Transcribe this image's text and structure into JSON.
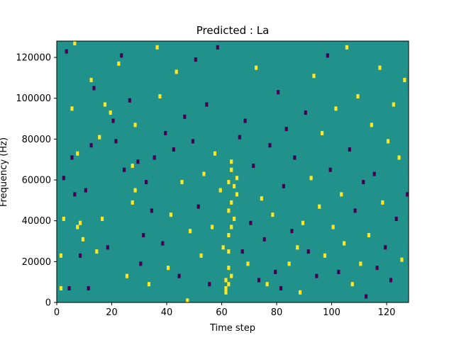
{
  "chart_data": {
    "type": "heatmap",
    "title": "Predicted : La",
    "xlabel": "Time step",
    "ylabel": "Frequency (Hz)",
    "xlim": [
      0,
      128
    ],
    "ylim": [
      0,
      128000
    ],
    "x_ticks": [
      0,
      20,
      40,
      60,
      80,
      100,
      120
    ],
    "y_ticks": [
      0,
      20000,
      40000,
      60000,
      80000,
      100000,
      120000
    ],
    "n_time_steps": 128,
    "n_freq_bins": 64,
    "grid": false,
    "colormap": "viridis",
    "colors": {
      "background": "#21918c",
      "high": "#fde725",
      "low": "#440154"
    },
    "cell_value_legend": {
      "high": 1,
      "low": -1,
      "background": 0
    },
    "cells": [
      {
        "t": 1,
        "f": 3,
        "v": 1
      },
      {
        "t": 1,
        "f": 11,
        "v": 1
      },
      {
        "t": 2,
        "f": 20,
        "v": 1
      },
      {
        "t": 2,
        "f": 30,
        "v": -1
      },
      {
        "t": 3,
        "f": 61,
        "v": -1
      },
      {
        "t": 4,
        "f": 3,
        "v": -1
      },
      {
        "t": 5,
        "f": 35,
        "v": -1
      },
      {
        "t": 5,
        "f": 47,
        "v": 1
      },
      {
        "t": 6,
        "f": 63,
        "v": 1
      },
      {
        "t": 6,
        "f": 26,
        "v": -1
      },
      {
        "t": 7,
        "f": 18,
        "v": 1
      },
      {
        "t": 7,
        "f": 36,
        "v": 1
      },
      {
        "t": 8,
        "f": 11,
        "v": -1
      },
      {
        "t": 8,
        "f": 19,
        "v": 1
      },
      {
        "t": 9,
        "f": 15,
        "v": 1
      },
      {
        "t": 10,
        "f": 27,
        "v": -1
      },
      {
        "t": 11,
        "f": 3,
        "v": -1
      },
      {
        "t": 12,
        "f": 38,
        "v": -1
      },
      {
        "t": 12,
        "f": 54,
        "v": 1
      },
      {
        "t": 13,
        "f": 52,
        "v": -1
      },
      {
        "t": 14,
        "f": 12,
        "v": 1
      },
      {
        "t": 15,
        "f": 40,
        "v": 1
      },
      {
        "t": 16,
        "f": 20,
        "v": 1
      },
      {
        "t": 17,
        "f": 48,
        "v": 1
      },
      {
        "t": 18,
        "f": 13,
        "v": -1
      },
      {
        "t": 19,
        "f": 46,
        "v": 1
      },
      {
        "t": 20,
        "f": 44,
        "v": -1
      },
      {
        "t": 21,
        "f": 39,
        "v": -1
      },
      {
        "t": 22,
        "f": 58,
        "v": 1
      },
      {
        "t": 23,
        "f": 60,
        "v": -1
      },
      {
        "t": 24,
        "f": 32,
        "v": -1
      },
      {
        "t": 25,
        "f": 6,
        "v": 1
      },
      {
        "t": 26,
        "f": 49,
        "v": -1
      },
      {
        "t": 27,
        "f": 24,
        "v": 1
      },
      {
        "t": 27,
        "f": 33,
        "v": 1
      },
      {
        "t": 28,
        "f": 27,
        "v": 1
      },
      {
        "t": 28,
        "f": 43,
        "v": 1
      },
      {
        "t": 29,
        "f": 34,
        "v": -1
      },
      {
        "t": 30,
        "f": 9,
        "v": -1
      },
      {
        "t": 31,
        "f": 16,
        "v": -1
      },
      {
        "t": 32,
        "f": 29,
        "v": -1
      },
      {
        "t": 33,
        "f": 4,
        "v": 1
      },
      {
        "t": 34,
        "f": 22,
        "v": -1
      },
      {
        "t": 35,
        "f": 35,
        "v": -1
      },
      {
        "t": 36,
        "f": 62,
        "v": 1
      },
      {
        "t": 37,
        "f": 50,
        "v": 1
      },
      {
        "t": 38,
        "f": 14,
        "v": -1
      },
      {
        "t": 39,
        "f": 41,
        "v": -1
      },
      {
        "t": 40,
        "f": 8,
        "v": 1
      },
      {
        "t": 41,
        "f": 21,
        "v": 1
      },
      {
        "t": 42,
        "f": 37,
        "v": -1
      },
      {
        "t": 43,
        "f": 56,
        "v": 1
      },
      {
        "t": 44,
        "f": 6,
        "v": -1
      },
      {
        "t": 45,
        "f": 29,
        "v": 1
      },
      {
        "t": 46,
        "f": 45,
        "v": -1
      },
      {
        "t": 47,
        "f": 0,
        "v": 1
      },
      {
        "t": 48,
        "f": 17,
        "v": 1
      },
      {
        "t": 49,
        "f": 39,
        "v": -1
      },
      {
        "t": 50,
        "f": 59,
        "v": -1
      },
      {
        "t": 51,
        "f": 23,
        "v": -1
      },
      {
        "t": 52,
        "f": 11,
        "v": 1
      },
      {
        "t": 53,
        "f": 31,
        "v": 1
      },
      {
        "t": 54,
        "f": 48,
        "v": -1
      },
      {
        "t": 55,
        "f": 4,
        "v": -1
      },
      {
        "t": 56,
        "f": 18,
        "v": 1
      },
      {
        "t": 57,
        "f": 36,
        "v": 1
      },
      {
        "t": 58,
        "f": 62,
        "v": -1
      },
      {
        "t": 59,
        "f": 27,
        "v": 1
      },
      {
        "t": 60,
        "f": 13,
        "v": 1
      },
      {
        "t": 61,
        "f": 2,
        "v": 1
      },
      {
        "t": 61,
        "f": 3,
        "v": 1
      },
      {
        "t": 61,
        "f": 5,
        "v": 1
      },
      {
        "t": 62,
        "f": 4,
        "v": 1
      },
      {
        "t": 62,
        "f": 8,
        "v": 1
      },
      {
        "t": 62,
        "f": 12,
        "v": 1
      },
      {
        "t": 62,
        "f": 16,
        "v": 1
      },
      {
        "t": 62,
        "f": 22,
        "v": 1
      },
      {
        "t": 62,
        "f": 29,
        "v": 1
      },
      {
        "t": 63,
        "f": 6,
        "v": 1
      },
      {
        "t": 63,
        "f": 18,
        "v": 1
      },
      {
        "t": 63,
        "f": 24,
        "v": 1
      },
      {
        "t": 63,
        "f": 32,
        "v": 1
      },
      {
        "t": 63,
        "f": 34,
        "v": 1
      },
      {
        "t": 64,
        "f": 20,
        "v": 1
      },
      {
        "t": 64,
        "f": 28,
        "v": 1
      },
      {
        "t": 65,
        "f": 26,
        "v": 1
      },
      {
        "t": 65,
        "f": 30,
        "v": 1
      },
      {
        "t": 66,
        "f": 40,
        "v": -1
      },
      {
        "t": 67,
        "f": 12,
        "v": -1
      },
      {
        "t": 68,
        "f": 44,
        "v": -1
      },
      {
        "t": 69,
        "f": 9,
        "v": 1
      },
      {
        "t": 70,
        "f": 19,
        "v": -1
      },
      {
        "t": 71,
        "f": 33,
        "v": -1
      },
      {
        "t": 72,
        "f": 57,
        "v": 1
      },
      {
        "t": 73,
        "f": 5,
        "v": -1
      },
      {
        "t": 74,
        "f": 25,
        "v": 1
      },
      {
        "t": 75,
        "f": 15,
        "v": -1
      },
      {
        "t": 76,
        "f": 4,
        "v": 1
      },
      {
        "t": 77,
        "f": 38,
        "v": -1
      },
      {
        "t": 78,
        "f": 21,
        "v": 1
      },
      {
        "t": 79,
        "f": 7,
        "v": -1
      },
      {
        "t": 80,
        "f": 51,
        "v": -1
      },
      {
        "t": 81,
        "f": 3,
        "v": -1
      },
      {
        "t": 82,
        "f": 28,
        "v": -1
      },
      {
        "t": 83,
        "f": 42,
        "v": -1
      },
      {
        "t": 84,
        "f": 9,
        "v": 1
      },
      {
        "t": 85,
        "f": 17,
        "v": -1
      },
      {
        "t": 86,
        "f": 35,
        "v": -1
      },
      {
        "t": 87,
        "f": 13,
        "v": 1
      },
      {
        "t": 88,
        "f": 2,
        "v": 1
      },
      {
        "t": 89,
        "f": 19,
        "v": 1
      },
      {
        "t": 90,
        "f": 46,
        "v": -1
      },
      {
        "t": 91,
        "f": 12,
        "v": -1
      },
      {
        "t": 92,
        "f": 30,
        "v": 1
      },
      {
        "t": 93,
        "f": 55,
        "v": 1
      },
      {
        "t": 94,
        "f": 6,
        "v": -1
      },
      {
        "t": 95,
        "f": 23,
        "v": 1
      },
      {
        "t": 96,
        "f": 41,
        "v": 1
      },
      {
        "t": 97,
        "f": 11,
        "v": 1
      },
      {
        "t": 98,
        "f": 60,
        "v": -1
      },
      {
        "t": 99,
        "f": 32,
        "v": -1
      },
      {
        "t": 100,
        "f": 18,
        "v": 1
      },
      {
        "t": 101,
        "f": 47,
        "v": 1
      },
      {
        "t": 102,
        "f": 7,
        "v": -1
      },
      {
        "t": 103,
        "f": 26,
        "v": 1
      },
      {
        "t": 104,
        "f": 14,
        "v": 1
      },
      {
        "t": 105,
        "f": 62,
        "v": 1
      },
      {
        "t": 106,
        "f": 37,
        "v": -1
      },
      {
        "t": 107,
        "f": 4,
        "v": 1
      },
      {
        "t": 108,
        "f": 22,
        "v": -1
      },
      {
        "t": 109,
        "f": 50,
        "v": 1
      },
      {
        "t": 110,
        "f": 9,
        "v": 1
      },
      {
        "t": 111,
        "f": 29,
        "v": -1
      },
      {
        "t": 112,
        "f": 1,
        "v": -1
      },
      {
        "t": 113,
        "f": 16,
        "v": 1
      },
      {
        "t": 114,
        "f": 43,
        "v": 1
      },
      {
        "t": 115,
        "f": 31,
        "v": -1
      },
      {
        "t": 116,
        "f": 8,
        "v": -1
      },
      {
        "t": 117,
        "f": 57,
        "v": 1
      },
      {
        "t": 118,
        "f": 24,
        "v": 1
      },
      {
        "t": 119,
        "f": 13,
        "v": -1
      },
      {
        "t": 120,
        "f": 39,
        "v": 1
      },
      {
        "t": 121,
        "f": 5,
        "v": -1
      },
      {
        "t": 122,
        "f": 48,
        "v": 1
      },
      {
        "t": 123,
        "f": 20,
        "v": -1
      },
      {
        "t": 124,
        "f": 35,
        "v": 1
      },
      {
        "t": 125,
        "f": 10,
        "v": 1
      },
      {
        "t": 126,
        "f": 54,
        "v": 1
      },
      {
        "t": 127,
        "f": 26,
        "v": -1
      }
    ]
  }
}
